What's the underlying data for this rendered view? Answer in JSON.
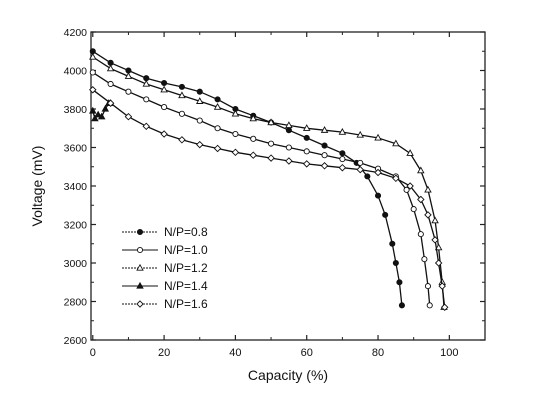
{
  "chart_data": {
    "type": "line",
    "xlabel": "Capacity (%)",
    "ylabel": "Voltage (mV)",
    "xlim": [
      -0.5,
      110
    ],
    "ylim": [
      2600,
      4200
    ],
    "x_ticks": [
      0,
      20,
      40,
      60,
      80,
      100
    ],
    "y_ticks": [
      2600,
      2800,
      3000,
      3200,
      3400,
      3600,
      3800,
      4000,
      4200
    ],
    "grid": false,
    "legend_position": "bottom-left",
    "series": [
      {
        "name": "N/P=0.8",
        "marker": "filled-circle",
        "points": [
          [
            0,
            4100
          ],
          [
            5,
            4040
          ],
          [
            10,
            4000
          ],
          [
            15,
            3960
          ],
          [
            20,
            3935
          ],
          [
            25,
            3915
          ],
          [
            30,
            3890
          ],
          [
            35,
            3850
          ],
          [
            40,
            3800
          ],
          [
            45,
            3765
          ],
          [
            50,
            3730
          ],
          [
            55,
            3690
          ],
          [
            60,
            3650
          ],
          [
            65,
            3610
          ],
          [
            70,
            3570
          ],
          [
            74,
            3520
          ],
          [
            77,
            3450
          ],
          [
            80,
            3350
          ],
          [
            82,
            3250
          ],
          [
            84,
            3100
          ],
          [
            85,
            3000
          ],
          [
            86,
            2900
          ],
          [
            86.7,
            2780
          ]
        ]
      },
      {
        "name": "N/P=1.0",
        "marker": "open-circle",
        "points": [
          [
            0,
            3990
          ],
          [
            5,
            3930
          ],
          [
            10,
            3890
          ],
          [
            15,
            3850
          ],
          [
            20,
            3810
          ],
          [
            25,
            3775
          ],
          [
            30,
            3740
          ],
          [
            35,
            3700
          ],
          [
            40,
            3670
          ],
          [
            45,
            3645
          ],
          [
            50,
            3620
          ],
          [
            55,
            3600
          ],
          [
            60,
            3580
          ],
          [
            65,
            3560
          ],
          [
            70,
            3540
          ],
          [
            75,
            3520
          ],
          [
            80,
            3490
          ],
          [
            85,
            3450
          ],
          [
            88,
            3380
          ],
          [
            90,
            3280
          ],
          [
            92,
            3150
          ],
          [
            93,
            3020
          ],
          [
            94,
            2880
          ],
          [
            94.5,
            2780
          ]
        ]
      },
      {
        "name": "N/P=1.2",
        "marker": "open-triangle",
        "points": [
          [
            0,
            4070
          ],
          [
            5,
            4010
          ],
          [
            10,
            3970
          ],
          [
            15,
            3930
          ],
          [
            20,
            3900
          ],
          [
            25,
            3870
          ],
          [
            30,
            3840
          ],
          [
            35,
            3810
          ],
          [
            40,
            3775
          ],
          [
            45,
            3750
          ],
          [
            50,
            3730
          ],
          [
            55,
            3715
          ],
          [
            60,
            3700
          ],
          [
            65,
            3690
          ],
          [
            70,
            3680
          ],
          [
            75,
            3665
          ],
          [
            80,
            3650
          ],
          [
            85,
            3620
          ],
          [
            89,
            3570
          ],
          [
            92,
            3480
          ],
          [
            94,
            3380
          ],
          [
            96,
            3220
          ],
          [
            97,
            3080
          ],
          [
            98,
            2900
          ],
          [
            98.5,
            2770
          ]
        ]
      },
      {
        "name": "N/P=1.4",
        "marker": "filled-triangle",
        "points": [
          [
            0,
            3790
          ],
          [
            0.6,
            3750
          ],
          [
            1.5,
            3770
          ],
          [
            2.5,
            3760
          ],
          [
            3.5,
            3800
          ],
          [
            4.5,
            3830
          ],
          [
            5,
            3830
          ]
        ]
      },
      {
        "name": "N/P=1.6",
        "marker": "open-diamond",
        "points": [
          [
            0,
            3900
          ],
          [
            5,
            3830
          ],
          [
            10,
            3760
          ],
          [
            15,
            3710
          ],
          [
            20,
            3670
          ],
          [
            25,
            3640
          ],
          [
            30,
            3615
          ],
          [
            35,
            3595
          ],
          [
            40,
            3575
          ],
          [
            45,
            3560
          ],
          [
            50,
            3545
          ],
          [
            55,
            3530
          ],
          [
            60,
            3515
          ],
          [
            65,
            3505
          ],
          [
            70,
            3495
          ],
          [
            75,
            3485
          ],
          [
            80,
            3470
          ],
          [
            85,
            3440
          ],
          [
            89,
            3400
          ],
          [
            92,
            3330
          ],
          [
            94,
            3250
          ],
          [
            96,
            3120
          ],
          [
            97,
            3000
          ],
          [
            98,
            2880
          ],
          [
            98.7,
            2770
          ]
        ]
      }
    ]
  }
}
